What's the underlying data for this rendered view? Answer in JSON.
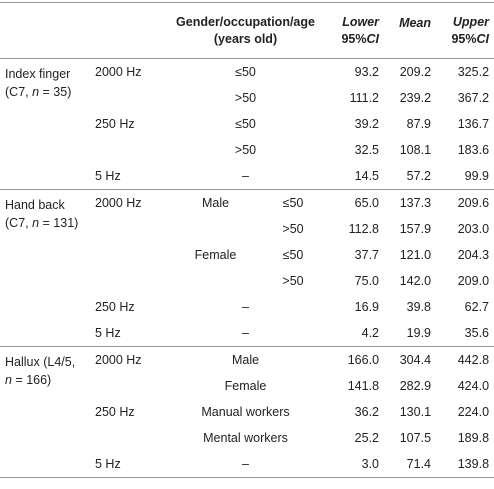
{
  "header": {
    "condition": [
      "Gender/occupation/age",
      "(years old)"
    ],
    "lower": [
      "Lower",
      "95%",
      "CI"
    ],
    "mean": [
      "Mean"
    ],
    "upper": [
      "Upper",
      "95%",
      "CI"
    ]
  },
  "groups": [
    {
      "site": [
        "Index finger",
        "(C7, ",
        "n",
        " = 35)"
      ],
      "rows": [
        {
          "freq": "2000 Hz",
          "cond": "≤50",
          "lower": "93.2",
          "mean": "209.2",
          "upper": "325.2"
        },
        {
          "cond": ">50",
          "lower": "111.2",
          "mean": "239.2",
          "upper": "367.2"
        },
        {
          "freq": "250 Hz",
          "cond": "≤50",
          "lower": "39.2",
          "mean": "87.9",
          "upper": "136.7"
        },
        {
          "cond": ">50",
          "lower": "32.5",
          "mean": "108.1",
          "upper": "183.6"
        },
        {
          "freq": "5 Hz",
          "cond": "–",
          "lower": "14.5",
          "mean": "57.2",
          "upper": "99.9"
        }
      ]
    },
    {
      "site": [
        "Hand back",
        "(C7, ",
        "n",
        " = 131)"
      ],
      "rows": [
        {
          "freq": "2000 Hz",
          "sex": "Male",
          "age": "≤50",
          "lower": "65.0",
          "mean": "137.3",
          "upper": "209.6"
        },
        {
          "age": ">50",
          "lower": "112.8",
          "mean": "157.9",
          "upper": "203.0"
        },
        {
          "sex": "Female",
          "age": "≤50",
          "lower": "37.7",
          "mean": "121.0",
          "upper": "204.3"
        },
        {
          "age": ">50",
          "lower": "75.0",
          "mean": "142.0",
          "upper": "209.0"
        },
        {
          "freq": "250 Hz",
          "cond": "–",
          "lower": "16.9",
          "mean": "39.8",
          "upper": "62.7"
        },
        {
          "freq": "5 Hz",
          "cond": "–",
          "lower": "4.2",
          "mean": "19.9",
          "upper": "35.6"
        }
      ]
    },
    {
      "site": [
        "Hallux (L4/5,",
        "",
        "n",
        " = 166)"
      ],
      "rows": [
        {
          "freq": "2000 Hz",
          "cond": "Male",
          "lower": "166.0",
          "mean": "304.4",
          "upper": "442.8"
        },
        {
          "cond": "Female",
          "lower": "141.8",
          "mean": "282.9",
          "upper": "424.0"
        },
        {
          "freq": "250 Hz",
          "cond": "Manual workers",
          "lower": "36.2",
          "mean": "130.1",
          "upper": "224.0"
        },
        {
          "cond": "Mental workers",
          "lower": "25.2",
          "mean": "107.5",
          "upper": "189.8"
        },
        {
          "freq": "5 Hz",
          "cond": "–",
          "lower": "3.0",
          "mean": "71.4",
          "upper": "139.8"
        }
      ]
    }
  ]
}
